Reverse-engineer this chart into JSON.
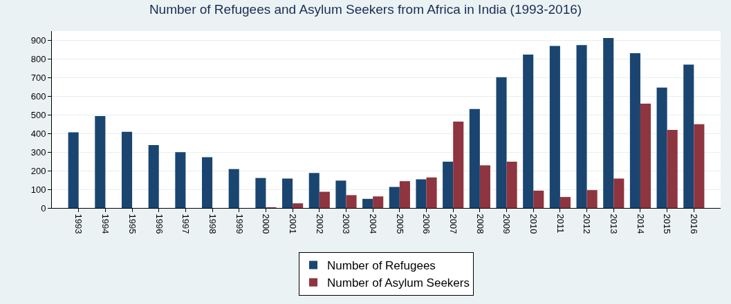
{
  "chart_data": {
    "type": "bar",
    "title": "Number of Refugees and Asylum Seekers from Africa in India (1993-2016)",
    "categories": [
      "1993",
      "1994",
      "1995",
      "1996",
      "1997",
      "1998",
      "1999",
      "2000",
      "2001",
      "2002",
      "2003",
      "2004",
      "2005",
      "2006",
      "2007",
      "2008",
      "2009",
      "2010",
      "2011",
      "2012",
      "2013",
      "2014",
      "2015",
      "2016"
    ],
    "series": [
      {
        "name": "Number of Refugees",
        "color": "#1a4570",
        "values": [
          406,
          494,
          409,
          338,
          300,
          273,
          209,
          161,
          158,
          188,
          147,
          49,
          113,
          154,
          249,
          532,
          702,
          824,
          870,
          875,
          913,
          831,
          647,
          770
        ]
      },
      {
        "name": "Number of Asylum Seekers",
        "color": "#8f3540",
        "values": [
          null,
          null,
          null,
          null,
          null,
          null,
          null,
          2,
          25,
          87,
          69,
          62,
          144,
          164,
          464,
          229,
          249,
          93,
          59,
          96,
          158,
          560,
          419,
          450
        ]
      }
    ],
    "ylim": [
      0,
      950
    ],
    "yticks": [
      0,
      100,
      200,
      300,
      400,
      500,
      600,
      700,
      800,
      900
    ],
    "grid": "y",
    "legend": "bottom"
  }
}
